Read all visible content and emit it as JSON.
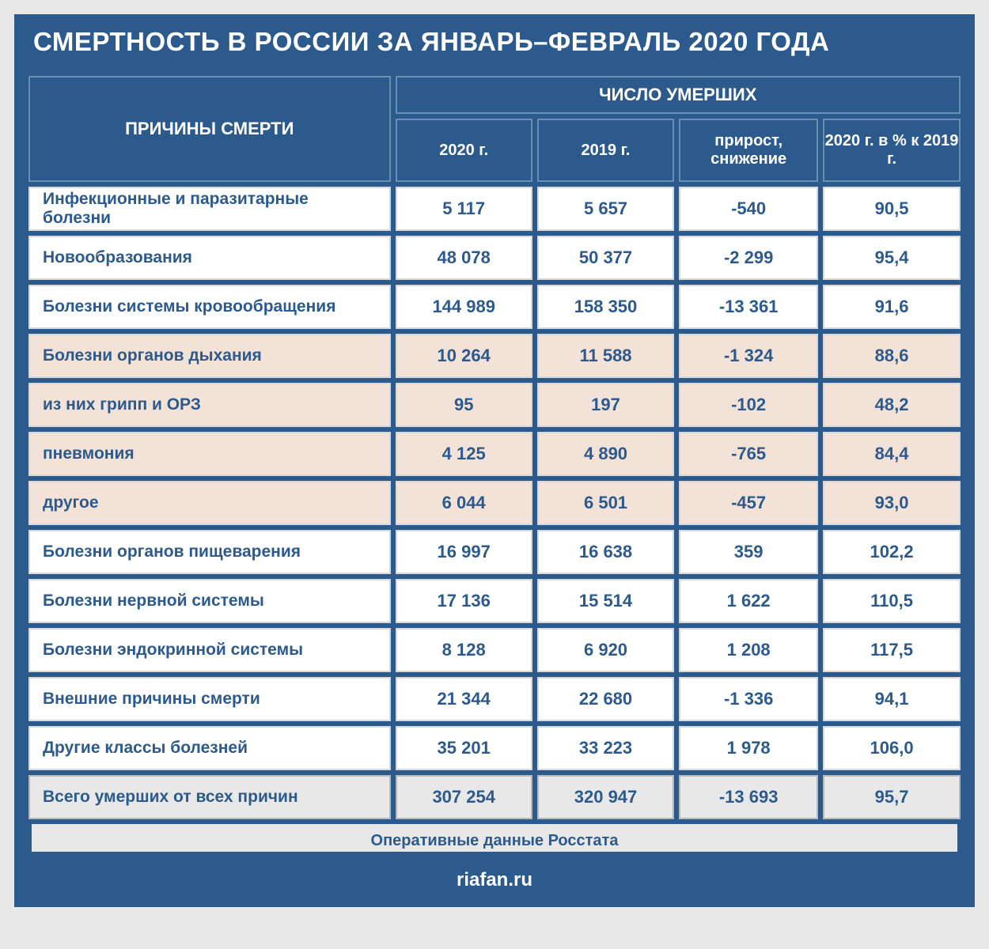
{
  "title": "СМЕРТНОСТЬ В РОССИИ ЗА ЯНВАРЬ–ФЕВРАЛЬ 2020 ГОДА",
  "headers": {
    "cause": "ПРИЧИНЫ СМЕРТИ",
    "super": "ЧИСЛО УМЕРШИХ",
    "col1": "2020 г.",
    "col2": "2019 г.",
    "col3": "прирост, снижение",
    "col4": "2020 г. в % к 2019 г."
  },
  "rows": [
    {
      "label": "Инфекционные и паразитарные болезни",
      "c1": "5 117",
      "c2": "5 657",
      "c3": "-540",
      "c4": "90,5",
      "variant": "normal"
    },
    {
      "label": "Новообразования",
      "c1": "48 078",
      "c2": "50 377",
      "c3": "-2 299",
      "c4": "95,4",
      "variant": "normal"
    },
    {
      "label": "Болезни системы кровообращения",
      "c1": "144 989",
      "c2": "158 350",
      "c3": "-13 361",
      "c4": "91,6",
      "variant": "normal"
    },
    {
      "label": "Болезни органов дыхания",
      "c1": "10 264",
      "c2": "11 588",
      "c3": "-1 324",
      "c4": "88,6",
      "variant": "sub"
    },
    {
      "label": "из них грипп и ОРЗ",
      "c1": "95",
      "c2": "197",
      "c3": "-102",
      "c4": "48,2",
      "variant": "sub"
    },
    {
      "label": "пневмония",
      "c1": "4 125",
      "c2": "4 890",
      "c3": "-765",
      "c4": "84,4",
      "variant": "sub"
    },
    {
      "label": "другое",
      "c1": "6 044",
      "c2": "6 501",
      "c3": "-457",
      "c4": "93,0",
      "variant": "sub"
    },
    {
      "label": "Болезни органов пищеварения",
      "c1": "16 997",
      "c2": "16 638",
      "c3": "359",
      "c4": "102,2",
      "variant": "normal"
    },
    {
      "label": "Болезни нервной системы",
      "c1": "17 136",
      "c2": "15 514",
      "c3": "1 622",
      "c4": "110,5",
      "variant": "normal"
    },
    {
      "label": "Болезни эндокринной системы",
      "c1": "8 128",
      "c2": "6 920",
      "c3": "1 208",
      "c4": "117,5",
      "variant": "normal"
    },
    {
      "label": "Внешние причины смерти",
      "c1": "21 344",
      "c2": "22 680",
      "c3": "-1 336",
      "c4": "94,1",
      "variant": "normal"
    },
    {
      "label": "Другие классы болезней",
      "c1": "35 201",
      "c2": "33 223",
      "c3": "1 978",
      "c4": "106,0",
      "variant": "normal"
    },
    {
      "label": "Всего умерших от всех причин",
      "c1": "307 254",
      "c2": "320 947",
      "c3": "-13 693",
      "c4": "95,7",
      "variant": "total"
    }
  ],
  "footer_note": "Оперативные данные Росстата",
  "footer_site": "riafan.ru",
  "style": {
    "primary_color": "#2d5a8c",
    "sub_row_bg": "#f3e2d8",
    "total_row_bg": "#e8e8e8",
    "cell_border": "#d8d8d8",
    "header_border": "#6a8fb5"
  }
}
